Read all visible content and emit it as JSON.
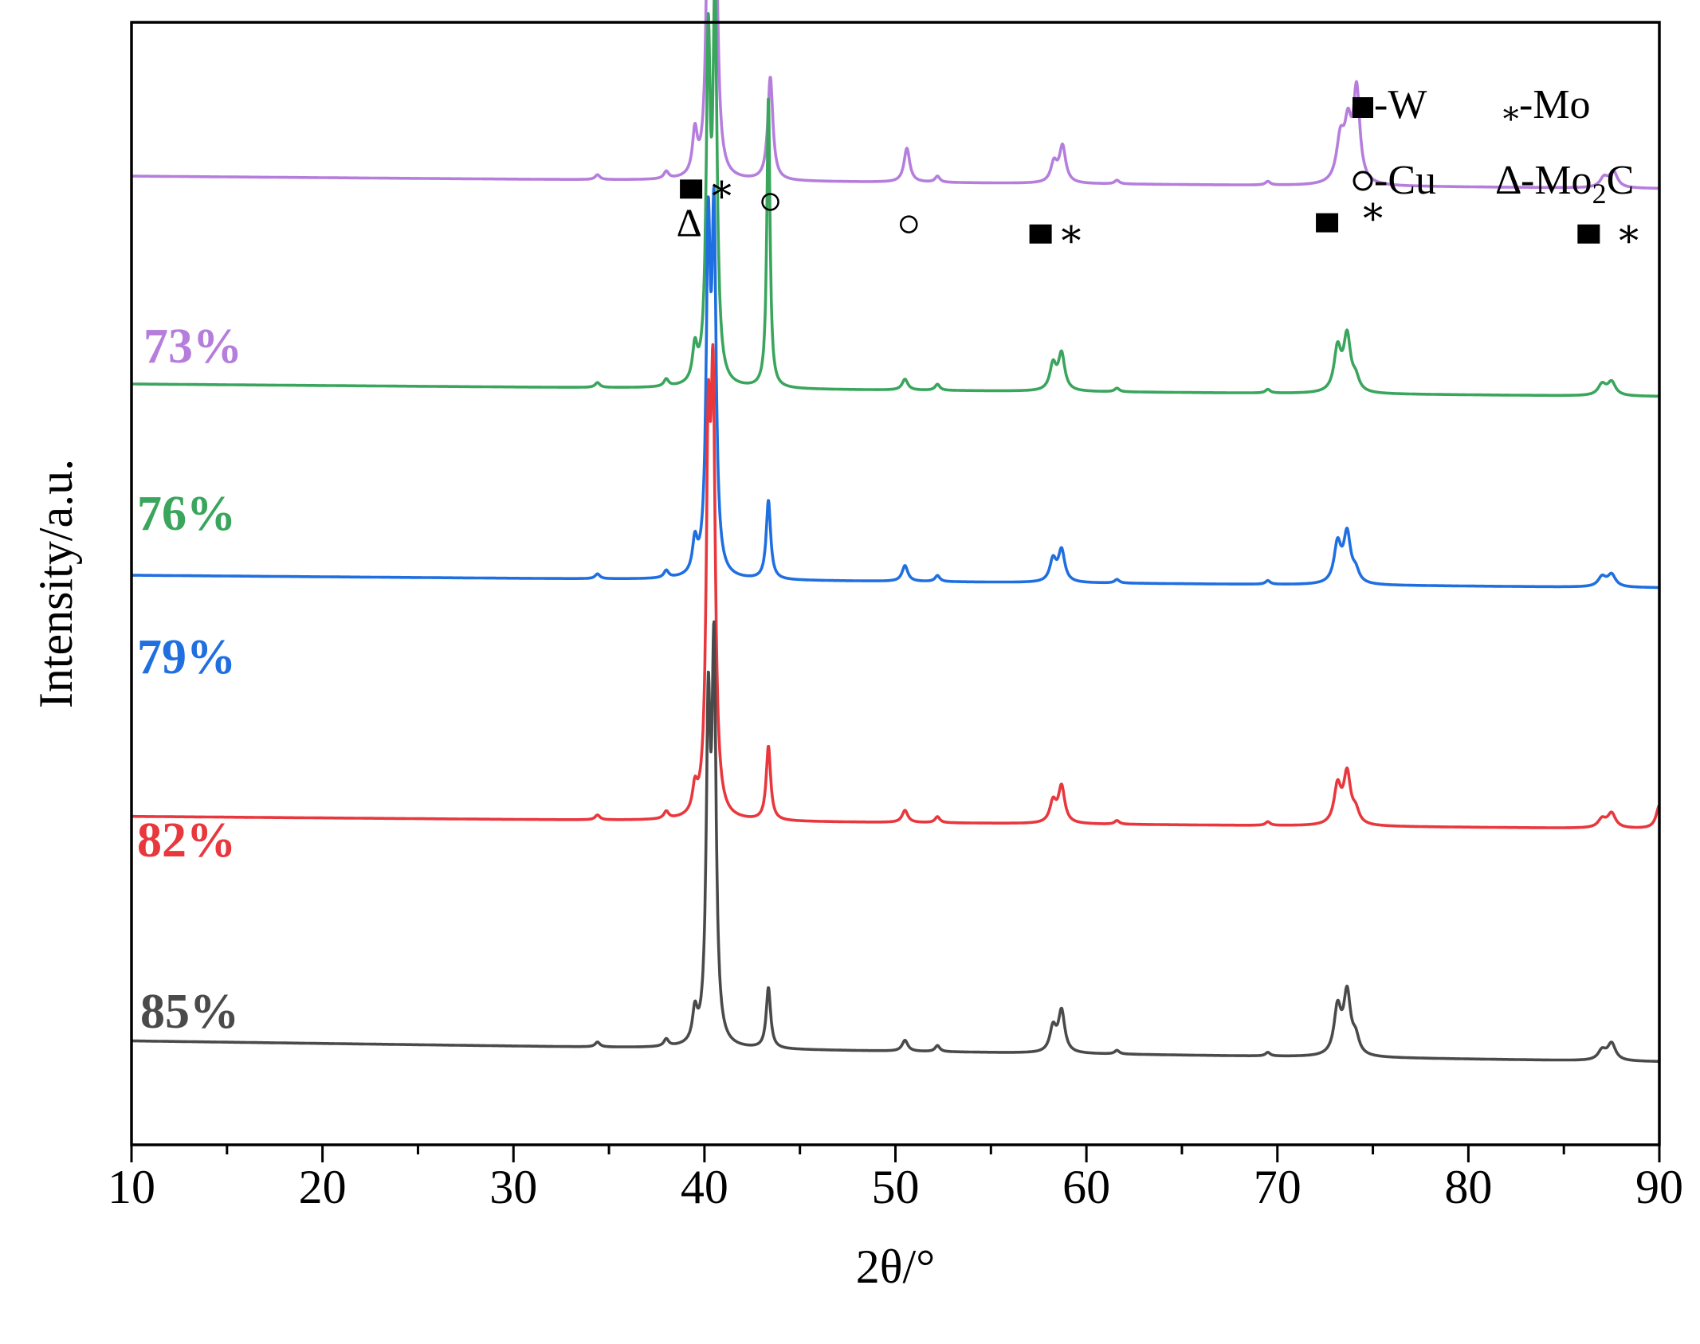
{
  "chart_data": {
    "type": "line",
    "title": "",
    "xlabel": "2θ/°",
    "ylabel": "Intensity/a.u.",
    "xlim": [
      10,
      90
    ],
    "xticks": [
      10,
      20,
      30,
      40,
      50,
      60,
      70,
      80,
      90
    ],
    "y_ticks_shown": false,
    "grid": false,
    "series": [
      {
        "name": "73%",
        "color": "#b57edc",
        "baseline": 0.8,
        "drift": 0.015,
        "peaks": [
          [
            34.4,
            0.4,
            0.15
          ],
          [
            38.0,
            0.6,
            0.15
          ],
          [
            39.5,
            3.5,
            0.15
          ],
          [
            40.2,
            22,
            0.13
          ],
          [
            40.55,
            27,
            0.14
          ],
          [
            43.45,
            8.5,
            0.16
          ],
          [
            50.6,
            2.8,
            0.18
          ],
          [
            52.2,
            0.5,
            0.15
          ],
          [
            58.3,
            1.6,
            0.2
          ],
          [
            58.75,
            3.0,
            0.2
          ],
          [
            61.6,
            0.3,
            0.15
          ],
          [
            69.5,
            0.3,
            0.15
          ],
          [
            73.3,
            3.5,
            0.25
          ],
          [
            73.7,
            4.2,
            0.22
          ],
          [
            74.15,
            7.5,
            0.2
          ],
          [
            87.1,
            0.8,
            0.25
          ],
          [
            87.6,
            1.3,
            0.25
          ]
        ]
      },
      {
        "name": "76%",
        "color": "#3aa55c",
        "baseline": 0.55,
        "drift": 0.015,
        "peaks": [
          [
            34.4,
            0.4,
            0.15
          ],
          [
            38.0,
            0.6,
            0.15
          ],
          [
            39.5,
            2.8,
            0.15
          ],
          [
            40.2,
            27,
            0.13
          ],
          [
            40.55,
            31,
            0.13
          ],
          [
            43.35,
            24,
            0.1
          ],
          [
            50.5,
            0.9,
            0.18
          ],
          [
            52.2,
            0.5,
            0.15
          ],
          [
            58.25,
            2.1,
            0.2
          ],
          [
            58.7,
            3.0,
            0.2
          ],
          [
            61.6,
            0.3,
            0.15
          ],
          [
            69.5,
            0.3,
            0.15
          ],
          [
            73.15,
            3.5,
            0.22
          ],
          [
            73.65,
            4.5,
            0.22
          ],
          [
            74.1,
            1.0,
            0.22
          ],
          [
            87.0,
            0.9,
            0.25
          ],
          [
            87.5,
            1.1,
            0.25
          ]
        ]
      },
      {
        "name": "79%",
        "color": "#1f6fe0",
        "baseline": 0.32,
        "drift": 0.015,
        "peaks": [
          [
            34.4,
            0.4,
            0.15
          ],
          [
            38.0,
            0.6,
            0.15
          ],
          [
            39.5,
            2.6,
            0.15
          ],
          [
            40.2,
            27,
            0.13
          ],
          [
            40.5,
            28,
            0.13
          ],
          [
            43.35,
            6.5,
            0.14
          ],
          [
            50.5,
            1.3,
            0.18
          ],
          [
            52.2,
            0.5,
            0.15
          ],
          [
            58.25,
            1.8,
            0.2
          ],
          [
            58.7,
            2.6,
            0.2
          ],
          [
            61.6,
            0.3,
            0.15
          ],
          [
            69.5,
            0.3,
            0.15
          ],
          [
            73.15,
            3.2,
            0.22
          ],
          [
            73.65,
            4.0,
            0.22
          ],
          [
            74.1,
            0.9,
            0.22
          ],
          [
            87.0,
            0.8,
            0.25
          ],
          [
            87.5,
            1.0,
            0.25
          ]
        ]
      },
      {
        "name": "82%",
        "color": "#e8373d",
        "baseline": 0.03,
        "drift": 0.015,
        "peaks": [
          [
            34.4,
            0.4,
            0.15
          ],
          [
            38.0,
            0.6,
            0.15
          ],
          [
            39.5,
            2.0,
            0.15
          ],
          [
            40.2,
            28,
            0.13
          ],
          [
            40.45,
            33,
            0.14
          ],
          [
            43.35,
            6.1,
            0.14
          ],
          [
            50.5,
            1.0,
            0.18
          ],
          [
            52.2,
            0.5,
            0.15
          ],
          [
            58.25,
            1.7,
            0.2
          ],
          [
            58.7,
            3.0,
            0.2
          ],
          [
            61.6,
            0.3,
            0.15
          ],
          [
            69.5,
            0.3,
            0.15
          ],
          [
            73.15,
            3.1,
            0.22
          ],
          [
            73.65,
            4.1,
            0.22
          ],
          [
            74.1,
            1.0,
            0.22
          ],
          [
            87.0,
            0.7,
            0.25
          ],
          [
            87.5,
            1.2,
            0.25
          ],
          [
            90.0,
            1.9,
            0.2
          ]
        ]
      },
      {
        "name": "85%",
        "color": "#4a4a4a",
        "baseline": -0.25,
        "drift": 0.025,
        "peaks": [
          [
            34.4,
            0.4,
            0.15
          ],
          [
            38.0,
            0.6,
            0.15
          ],
          [
            39.5,
            2.5,
            0.15
          ],
          [
            40.2,
            26,
            0.13
          ],
          [
            40.5,
            31,
            0.13
          ],
          [
            43.35,
            5.0,
            0.14
          ],
          [
            50.5,
            0.9,
            0.18
          ],
          [
            52.2,
            0.5,
            0.15
          ],
          [
            58.25,
            2.0,
            0.2
          ],
          [
            58.7,
            3.4,
            0.2
          ],
          [
            61.6,
            0.3,
            0.15
          ],
          [
            69.5,
            0.3,
            0.15
          ],
          [
            73.15,
            3.8,
            0.22
          ],
          [
            73.65,
            5.0,
            0.22
          ],
          [
            74.1,
            1.3,
            0.22
          ],
          [
            87.0,
            0.8,
            0.25
          ],
          [
            87.5,
            1.4,
            0.25
          ]
        ]
      }
    ],
    "peak_scale": 0.0146,
    "annotations": [
      {
        "type": "square",
        "x": 39.3,
        "y": 0.85
      },
      {
        "type": "star",
        "x": 40.9,
        "y": 0.85
      },
      {
        "type": "delta",
        "x": 39.2,
        "y": 0.835
      },
      {
        "type": "circle",
        "x": 43.45,
        "y": 0.84
      },
      {
        "type": "circle",
        "x": 50.7,
        "y": 0.82
      },
      {
        "type": "square",
        "x": 57.6,
        "y": 0.81
      },
      {
        "type": "star",
        "x": 59.2,
        "y": 0.81
      },
      {
        "type": "square",
        "x": 72.6,
        "y": 0.82
      },
      {
        "type": "star",
        "x": 75.0,
        "y": 0.83
      },
      {
        "type": "square",
        "x": 86.3,
        "y": 0.81
      },
      {
        "type": "star",
        "x": 88.4,
        "y": 0.81
      }
    ],
    "legend": {
      "placement": "top-right",
      "entries": [
        {
          "symbol": "square",
          "label": "-W"
        },
        {
          "symbol": "star",
          "label": "-Mo"
        },
        {
          "symbol": "circle",
          "label": "-Cu"
        },
        {
          "symbol": "delta",
          "label": "-Mo"
        }
      ],
      "mo2c_subscript": "2",
      "mo2c_suffix": "C"
    }
  }
}
